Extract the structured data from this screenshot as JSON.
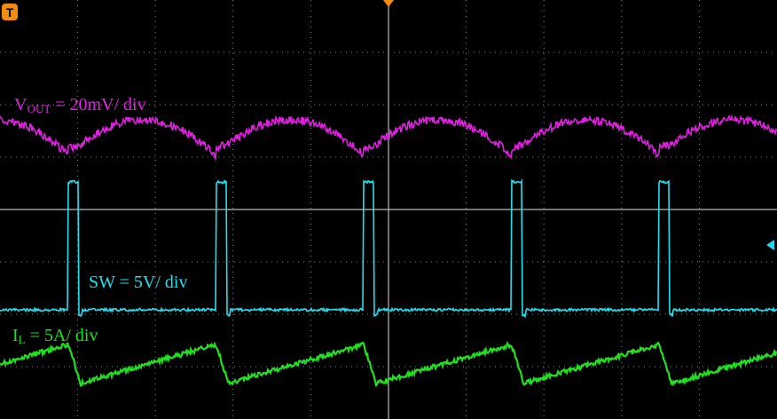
{
  "trigger": "T",
  "labels": {
    "vout": {
      "main": "V",
      "sub": "OUT",
      "rest": " = 20mV/ div"
    },
    "sw": {
      "main": "SW = 5V/ div"
    },
    "il": {
      "main": "I",
      "sub": "L",
      "rest": " = 5A/ div"
    }
  }
}
